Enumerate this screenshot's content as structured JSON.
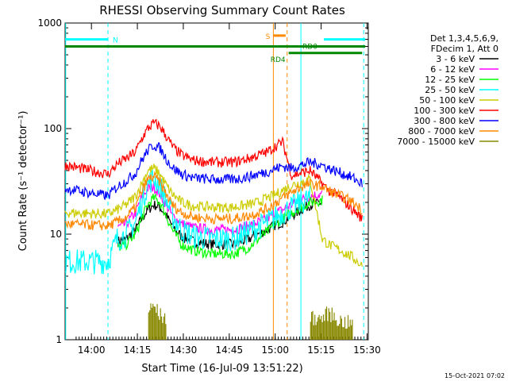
{
  "chart_data": {
    "type": "line",
    "title": "RHESSI Observing Summary Count Rates",
    "xlabel": "Start Time (16-Jul-09 13:51:22)",
    "ylabel": "Count Rate (s⁻¹ detector⁻¹)",
    "x_unit": "minutes since 13:51:22",
    "xlim": [
      0,
      99
    ],
    "ylim": [
      1,
      1000
    ],
    "y_scale": "log",
    "x_ticks": [
      {
        "label": "14:00",
        "value": 8.6
      },
      {
        "label": "14:15",
        "value": 23.6
      },
      {
        "label": "14:30",
        "value": 38.6
      },
      {
        "label": "14:45",
        "value": 53.6
      },
      {
        "label": "15:00",
        "value": 68.6
      },
      {
        "label": "15:15",
        "value": 83.6
      },
      {
        "label": "15:30",
        "value": 98.6
      }
    ],
    "y_ticks": [
      {
        "label": "1",
        "value": 1
      },
      {
        "label": "10",
        "value": 10
      },
      {
        "label": "100",
        "value": 100
      },
      {
        "label": "1000",
        "value": 1000
      }
    ],
    "legend": {
      "position": "right",
      "header": [
        "Det 1,3,4,5,6,9,",
        "FDecim 1, Att 0"
      ]
    },
    "series": [
      {
        "name": "3 - 6 keV",
        "color": "#000000",
        "x": [
          0,
          14,
          17,
          20,
          23,
          25,
          27,
          29,
          31,
          33,
          35,
          38,
          42,
          48,
          55,
          60,
          63,
          66,
          68,
          71,
          74,
          77,
          80,
          84
        ],
        "y": [
          null,
          null,
          8.5,
          9,
          11,
          14,
          17,
          19,
          18,
          15,
          12,
          9.5,
          8.5,
          8,
          8,
          9,
          10,
          11,
          12,
          13,
          15,
          17,
          19,
          20
        ]
      },
      {
        "name": "6 - 12 keV",
        "color": "#ff00ff",
        "x": [
          0,
          14,
          17,
          20,
          23,
          25,
          27,
          29,
          31,
          33,
          35,
          38,
          42,
          48,
          55,
          60,
          63,
          66,
          68,
          71,
          74,
          77,
          80,
          84
        ],
        "y": [
          null,
          null,
          11.5,
          12.5,
          16,
          22,
          27,
          28,
          24,
          19,
          15,
          12.5,
          11.5,
          11,
          11,
          12,
          13,
          14,
          15.5,
          17,
          19,
          21,
          23,
          24
        ]
      },
      {
        "name": "12 - 25 keV",
        "color": "#00ff00",
        "x": [
          0,
          14,
          17,
          20,
          23,
          25,
          27,
          29,
          31,
          33,
          35,
          38,
          42,
          48,
          55,
          60,
          63,
          66,
          68,
          71,
          74,
          77,
          80,
          84
        ],
        "y": [
          null,
          null,
          7.5,
          8,
          10,
          14,
          19,
          22,
          20,
          15,
          11,
          8,
          7,
          6.5,
          6.5,
          7.5,
          9,
          10.5,
          12,
          14,
          16,
          18,
          20,
          21
        ]
      },
      {
        "name": "25 - 50 keV",
        "color": "#00ffff",
        "x": [
          0,
          14,
          17,
          20,
          23,
          25,
          27,
          29,
          31,
          33,
          35,
          38,
          42,
          48,
          55,
          60,
          63,
          66,
          68,
          71,
          74,
          77,
          80,
          84,
          86,
          90,
          94
        ],
        "y": [
          5.5,
          5.5,
          9,
          10,
          13,
          20,
          30,
          34,
          29,
          21,
          15,
          11,
          9.5,
          9,
          9,
          10.5,
          11.5,
          13,
          14,
          16,
          18,
          20,
          22,
          null,
          null,
          null,
          null
        ]
      },
      {
        "name": "50 - 100 keV",
        "color": "#cccc00",
        "x": [
          0,
          14,
          17,
          20,
          23,
          25,
          27,
          29,
          31,
          33,
          35,
          38,
          42,
          48,
          55,
          60,
          63,
          66,
          68,
          71,
          74,
          77,
          80,
          84,
          86,
          90,
          94,
          97
        ],
        "y": [
          16,
          15.5,
          17,
          19,
          23,
          30,
          40,
          42,
          37,
          29,
          24,
          20,
          18.5,
          18,
          18,
          19,
          20,
          22,
          23,
          26,
          29,
          31,
          33,
          9,
          8,
          7,
          6,
          5
        ]
      },
      {
        "name": "100 - 300 keV",
        "color": "#ff0000",
        "x": [
          0,
          14,
          17,
          20,
          23,
          25,
          27,
          29,
          31,
          33,
          35,
          38,
          42,
          48,
          55,
          60,
          63,
          66,
          68,
          71,
          74,
          77,
          80,
          84,
          86,
          90,
          94,
          97
        ],
        "y": [
          45,
          37,
          46,
          52,
          60,
          80,
          100,
          113,
          105,
          85,
          68,
          56,
          50,
          48,
          48,
          52,
          56,
          60,
          66,
          75,
          36,
          38,
          40,
          30,
          26,
          22,
          17,
          14
        ]
      },
      {
        "name": "300 - 800 keV",
        "color": "#0000ff",
        "x": [
          0,
          14,
          17,
          20,
          23,
          25,
          27,
          29,
          31,
          33,
          35,
          38,
          42,
          48,
          55,
          60,
          63,
          66,
          68,
          71,
          74,
          77,
          80,
          84,
          86,
          90,
          94,
          97
        ],
        "y": [
          27,
          23,
          28,
          32,
          38,
          50,
          62,
          70,
          65,
          52,
          43,
          37,
          34,
          33,
          33,
          35,
          37,
          39,
          41,
          44,
          42,
          45,
          48,
          45,
          42,
          38,
          34,
          30
        ]
      },
      {
        "name": "800 - 7000 keV",
        "color": "#ff8800",
        "x": [
          0,
          14,
          17,
          20,
          23,
          25,
          27,
          29,
          31,
          33,
          35,
          38,
          42,
          48,
          55,
          60,
          63,
          66,
          68,
          71,
          74,
          77,
          80,
          84,
          86,
          90,
          94,
          97
        ],
        "y": [
          12.5,
          12,
          13,
          14.5,
          18,
          25,
          33,
          35,
          31,
          24,
          19,
          16,
          14.5,
          14,
          14,
          15,
          16,
          17.5,
          19,
          22,
          25,
          28,
          30,
          28,
          26,
          23,
          20,
          17
        ]
      },
      {
        "name": "7000 - 15000 keV",
        "color": "#888800",
        "x": [
          0,
          14,
          17,
          20,
          23,
          25,
          27,
          29,
          31,
          33,
          35,
          38,
          42,
          48,
          55,
          60,
          63,
          66,
          68,
          71,
          74,
          77,
          80,
          84,
          86,
          90,
          94,
          97
        ],
        "y": [
          null,
          null,
          null,
          null,
          null,
          null,
          1.8,
          2.1,
          1.7,
          1.6,
          null,
          null,
          null,
          null,
          null,
          null,
          null,
          null,
          null,
          null,
          null,
          null,
          1.6,
          1.6,
          1.8,
          1.5,
          1.4,
          null
        ]
      }
    ],
    "flags": [
      {
        "label": "N",
        "color": "#00ffff",
        "y": 700,
        "segments": [
          [
            0,
            14
          ],
          [
            84.5,
            98
          ]
        ]
      },
      {
        "label": "S",
        "color": "#ff8800",
        "y": 760,
        "segments": [
          [
            68,
            72
          ]
        ]
      },
      {
        "label": "RD0",
        "color": "#008800",
        "y": 600,
        "segments": [
          [
            0,
            98
          ]
        ]
      },
      {
        "label": "RD4",
        "color": "#008800",
        "y": 520,
        "segments": [
          [
            73,
            97
          ]
        ]
      }
    ],
    "markers": [
      {
        "x": 0.2,
        "color": "#00ffff",
        "style": "solid"
      },
      {
        "x": 14,
        "color": "#00ffff",
        "style": "dashed"
      },
      {
        "x": 68,
        "color": "#ff8800",
        "style": "solid"
      },
      {
        "x": 72.5,
        "color": "#ff8800",
        "style": "dashed"
      },
      {
        "x": 77,
        "color": "#00ffff",
        "style": "solid"
      },
      {
        "x": 97.5,
        "color": "#00ffff",
        "style": "dashed"
      }
    ],
    "timestamp": "15-Oct-2021 07:02"
  }
}
